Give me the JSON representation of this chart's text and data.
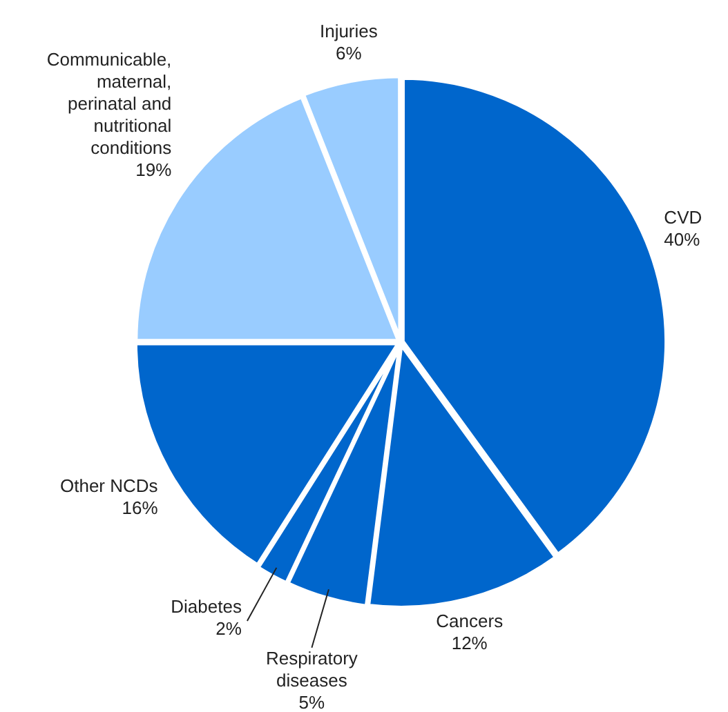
{
  "chart_data": {
    "type": "pie",
    "categories": [
      "CVD",
      "Cancers",
      "Respiratory diseases",
      "Diabetes",
      "Other NCDs",
      "Communicable, maternal, perinatal and nutritional conditions",
      "Injuries"
    ],
    "values": [
      40,
      12,
      5,
      2,
      16,
      19,
      6
    ],
    "value_labels": [
      "40%",
      "12%",
      "5%",
      "2%",
      "16%",
      "19%",
      "6%"
    ],
    "colors": [
      "#0066cc",
      "#0066cc",
      "#0066cc",
      "#0066cc",
      "#0066cc",
      "#99ccff",
      "#99ccff"
    ],
    "legend": false
  }
}
